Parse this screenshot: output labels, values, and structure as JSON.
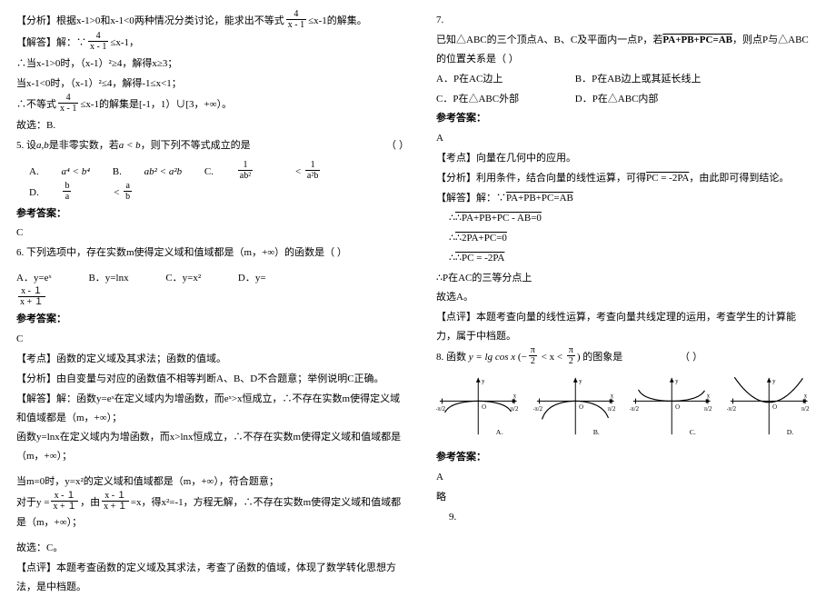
{
  "left": {
    "analysis_label": "【分析】",
    "analysis_text": "根据x-1>0和x-1<0两种情况分类讨论，能求出不等式",
    "analysis_tail": "≤x-1的解集。",
    "frac1_num": "4",
    "frac1_den": "x - 1",
    "solve_label": "【解答】",
    "solve_text": "解：∵",
    "solve_tail": "≤x-1，",
    "s_line1": "∴当x-1>0时，（x-1）²≥4，解得x≥3；",
    "s_line2": "当x-1<0时，（x-1）²≤4，解得-1≤x<1；",
    "s_line3a": "∴不等式",
    "s_line3b": "≤x-1的解集是[-1，1）∪[3，+∞）。",
    "s_line4": "故选：B.",
    "q5": "5. 设",
    "q5_ab": "a,b",
    "q5_mid": "是非零实数，若",
    "q5_cond": "a < b",
    "q5_tail": "，则下列不等式成立的是",
    "q5_paren": "（      ）",
    "q5_opts": {
      "a": "A.",
      "a_expr": "a⁴ < b⁴",
      "b": "B.",
      "b_expr": "ab² < a²b",
      "c": "C.",
      "d": "D."
    },
    "q5_c_l_num": "1",
    "q5_c_l_den": "ab²",
    "q5_c_r_num": "1",
    "q5_c_r_den": "a²b",
    "q5_d_l_num": "b",
    "q5_d_l_den": "a",
    "q5_d_r_num": "a",
    "q5_d_r_den": "b",
    "ans_label": "参考答案：",
    "q5_ans": "C",
    "q6": "6. 下列选项中，存在实数m使得定义域和值域都是（m，+∞）的函数是（      ）",
    "q6_opts": {
      "a": "A．y=eˣ",
      "b": "B．y=lnx",
      "c": "C．y=x²",
      "d": "D．y="
    },
    "q6_d_num": "x - １",
    "q6_d_den": "x + １",
    "q6_ans": "C",
    "q6_kp_label": "【考点】",
    "q6_kp": "函数的定义域及其求法；函数的值域。",
    "q6_an_label": "【分析】",
    "q6_an": "由自变量与对应的函数值不相等判断A、B、D不合题意；举例说明C正确。",
    "q6_sv_label": "【解答】",
    "q6_sv1": "解：函数y=eˣ在定义域内为增函数，而eˣ>x恒成立，∴不存在实数m使得定义域和值域都是（m，+∞）；",
    "q6_sv2": "函数y=lnx在定义域内为增函数，而x>lnx恒成立，∴不存在实数m使得定义域和值域都是（m，+∞）；",
    "q6_sv3": "当m=0时，y=x²的定义域和值域都是（m，+∞），符合题意；",
    "q6_sv4a": "对于",
    "q6_sv4_eq": "y =",
    "q6_sv4b": "，由",
    "q6_sv4c": "=x，得x²=-1，方程无解，∴不存在实数m使得定义域和值域都是（m，+∞）；",
    "q6_sv5": "故选：C。",
    "q6_cm_label": "【点评】",
    "q6_cm": "本题考查函数的定义域及其求法，考查了函数的值域，体现了数学转化思想方法，是中档题。"
  },
  "right": {
    "q7": "7.",
    "q7_text1": "已知△ABC的三个顶点A、B、C及平面内一点P，若",
    "q7_vec": "PA+PB+PC=AB",
    "q7_text2": "，则点P与△ABC的位置关系是（      ）",
    "q7_opts": {
      "a": "A．P在AC边上",
      "b": "B．P在AB边上或其延长线上",
      "c": "C．P在△ABC外部",
      "d": "D．P在△ABC内部"
    },
    "ans_label": "参考答案：",
    "q7_ans": "A",
    "q7_kp_label": "【考点】",
    "q7_kp": "向量在几何中的应用。",
    "q7_an_label": "【分析】",
    "q7_an": "利用条件，结合向量的线性运算，可得",
    "q7_an_vec": "PC = -2PA",
    "q7_an_tail": "，由此即可得到结论。",
    "q7_sv_label": "【解答】",
    "q7_sv0": "解：∵",
    "q7_sv0v": "PA+PB+PC=AB",
    "q7_sv1": "∴PA+PB+PC - AB=0",
    "q7_sv2": "∴2PA+PC=0",
    "q7_sv3": "∴PC = -2PA",
    "q7_sv4": "∴P在AC的三等分点上",
    "q7_sv5": "故选A。",
    "q7_cm_label": "【点评】",
    "q7_cm": "本题考查向量的线性运算，考查向量共线定理的运用，考查学生的计算能力，属于中档题。",
    "q8": "8. 函数",
    "q8_fn": "y = lg cos x",
    "q8_dom_l": "π",
    "q8_dom_l_den": "2",
    "q8_dom_r": "π",
    "q8_dom_r_den": "2",
    "q8_tail": "的图象是",
    "q8_paren": "（      ）",
    "charts": {
      "labels": {
        "x": "x",
        "y": "y"
      },
      "tick_neg": "-π/2",
      "tick_pos": "π/2",
      "origin": "O",
      "series": [
        "A",
        "B",
        "C",
        "D"
      ],
      "axis_color": "#000000",
      "curve_color": "#000000",
      "bg": "#ffffff",
      "line_width": 1.2,
      "xlim": [
        -1.7,
        1.7
      ],
      "ylim": [
        -2.2,
        1.6
      ],
      "shapes": {
        "A": "down-open",
        "B": "down-open-narrow",
        "C": "up-open",
        "D": "up-cup"
      }
    },
    "q8_ans": "A",
    "q8_note": "略",
    "q9": "9."
  }
}
